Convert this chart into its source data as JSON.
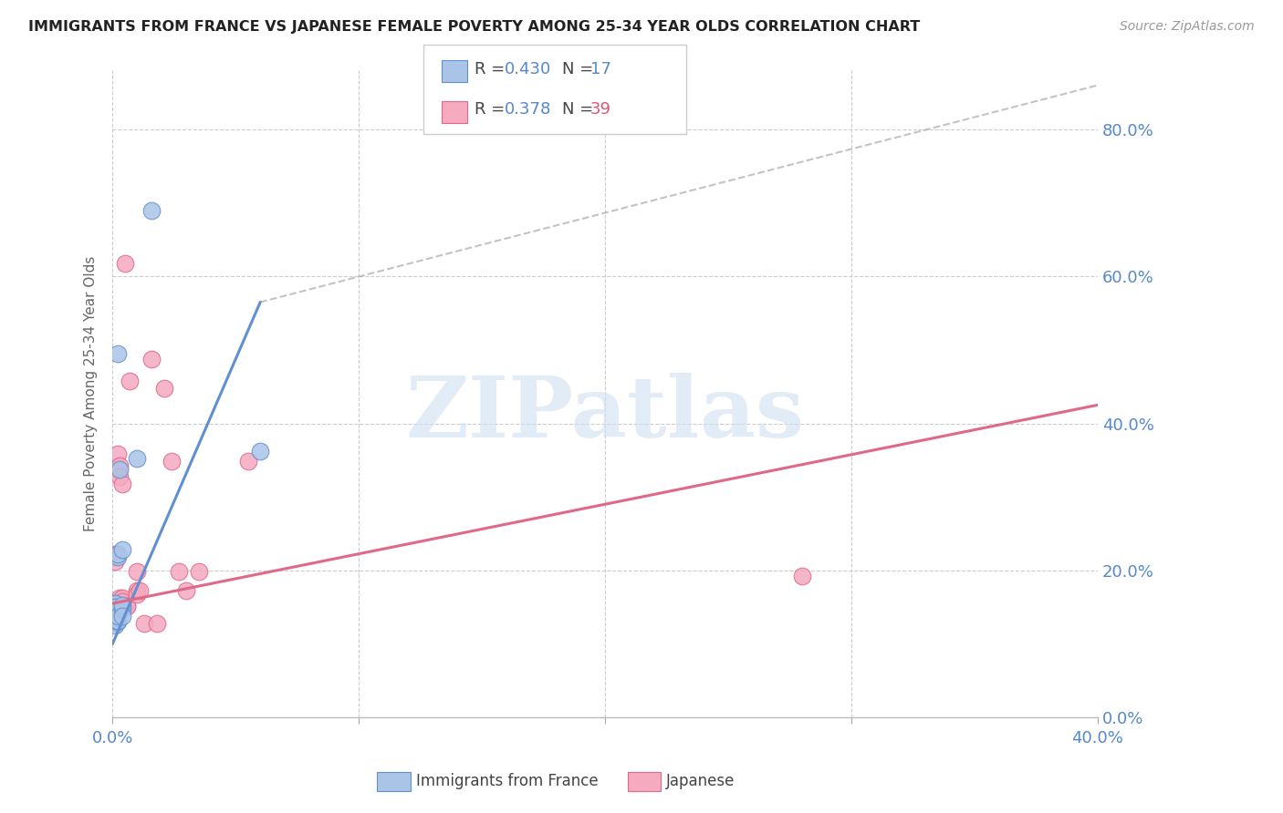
{
  "title": "IMMIGRANTS FROM FRANCE VS JAPANESE FEMALE POVERTY AMONG 25-34 YEAR OLDS CORRELATION CHART",
  "source": "Source: ZipAtlas.com",
  "ylabel": "Female Poverty Among 25-34 Year Olds",
  "color_blue": "#aac4e8",
  "color_pink": "#f5aac0",
  "color_line_blue": "#6090d0",
  "color_line_pink": "#e06888",
  "color_text_blue": "#5588cc",
  "color_text_pink": "#dd5577",
  "color_axis": "#5588cc",
  "watermark_color": "#d0e0f0",
  "xlim": [
    0.0,
    0.4
  ],
  "ylim": [
    0.0,
    0.88
  ],
  "xtick_vals": [
    0.0,
    0.1,
    0.2,
    0.3,
    0.4
  ],
  "ytick_vals": [
    0.0,
    0.2,
    0.4,
    0.6,
    0.8
  ],
  "blue_points": [
    [
      0.001,
      0.155
    ],
    [
      0.001,
      0.125
    ],
    [
      0.001,
      0.15
    ],
    [
      0.002,
      0.495
    ],
    [
      0.002,
      0.13
    ],
    [
      0.002,
      0.132
    ],
    [
      0.002,
      0.138
    ],
    [
      0.002,
      0.218
    ],
    [
      0.002,
      0.222
    ],
    [
      0.003,
      0.338
    ],
    [
      0.004,
      0.228
    ],
    [
      0.004,
      0.148
    ],
    [
      0.004,
      0.153
    ],
    [
      0.004,
      0.138
    ],
    [
      0.01,
      0.352
    ],
    [
      0.016,
      0.69
    ],
    [
      0.06,
      0.362
    ]
  ],
  "pink_points": [
    [
      0.001,
      0.152
    ],
    [
      0.001,
      0.128
    ],
    [
      0.001,
      0.218
    ],
    [
      0.001,
      0.222
    ],
    [
      0.001,
      0.212
    ],
    [
      0.001,
      0.142
    ],
    [
      0.002,
      0.338
    ],
    [
      0.002,
      0.358
    ],
    [
      0.002,
      0.138
    ],
    [
      0.002,
      0.138
    ],
    [
      0.002,
      0.152
    ],
    [
      0.002,
      0.155
    ],
    [
      0.002,
      0.158
    ],
    [
      0.003,
      0.342
    ],
    [
      0.003,
      0.328
    ],
    [
      0.003,
      0.152
    ],
    [
      0.003,
      0.162
    ],
    [
      0.004,
      0.318
    ],
    [
      0.004,
      0.158
    ],
    [
      0.004,
      0.162
    ],
    [
      0.004,
      0.158
    ],
    [
      0.005,
      0.618
    ],
    [
      0.006,
      0.152
    ],
    [
      0.006,
      0.152
    ],
    [
      0.007,
      0.458
    ],
    [
      0.01,
      0.198
    ],
    [
      0.01,
      0.172
    ],
    [
      0.01,
      0.168
    ],
    [
      0.011,
      0.172
    ],
    [
      0.013,
      0.128
    ],
    [
      0.016,
      0.488
    ],
    [
      0.018,
      0.128
    ],
    [
      0.021,
      0.448
    ],
    [
      0.024,
      0.348
    ],
    [
      0.027,
      0.198
    ],
    [
      0.03,
      0.172
    ],
    [
      0.035,
      0.198
    ],
    [
      0.055,
      0.348
    ],
    [
      0.28,
      0.192
    ]
  ],
  "blue_line_x": [
    0.0,
    0.06
  ],
  "blue_line_y": [
    0.1,
    0.565
  ],
  "pink_line_x": [
    0.0,
    0.4
  ],
  "pink_line_y": [
    0.155,
    0.425
  ],
  "dash_line_x": [
    0.06,
    0.4
  ],
  "dash_line_y": [
    0.565,
    0.86
  ]
}
